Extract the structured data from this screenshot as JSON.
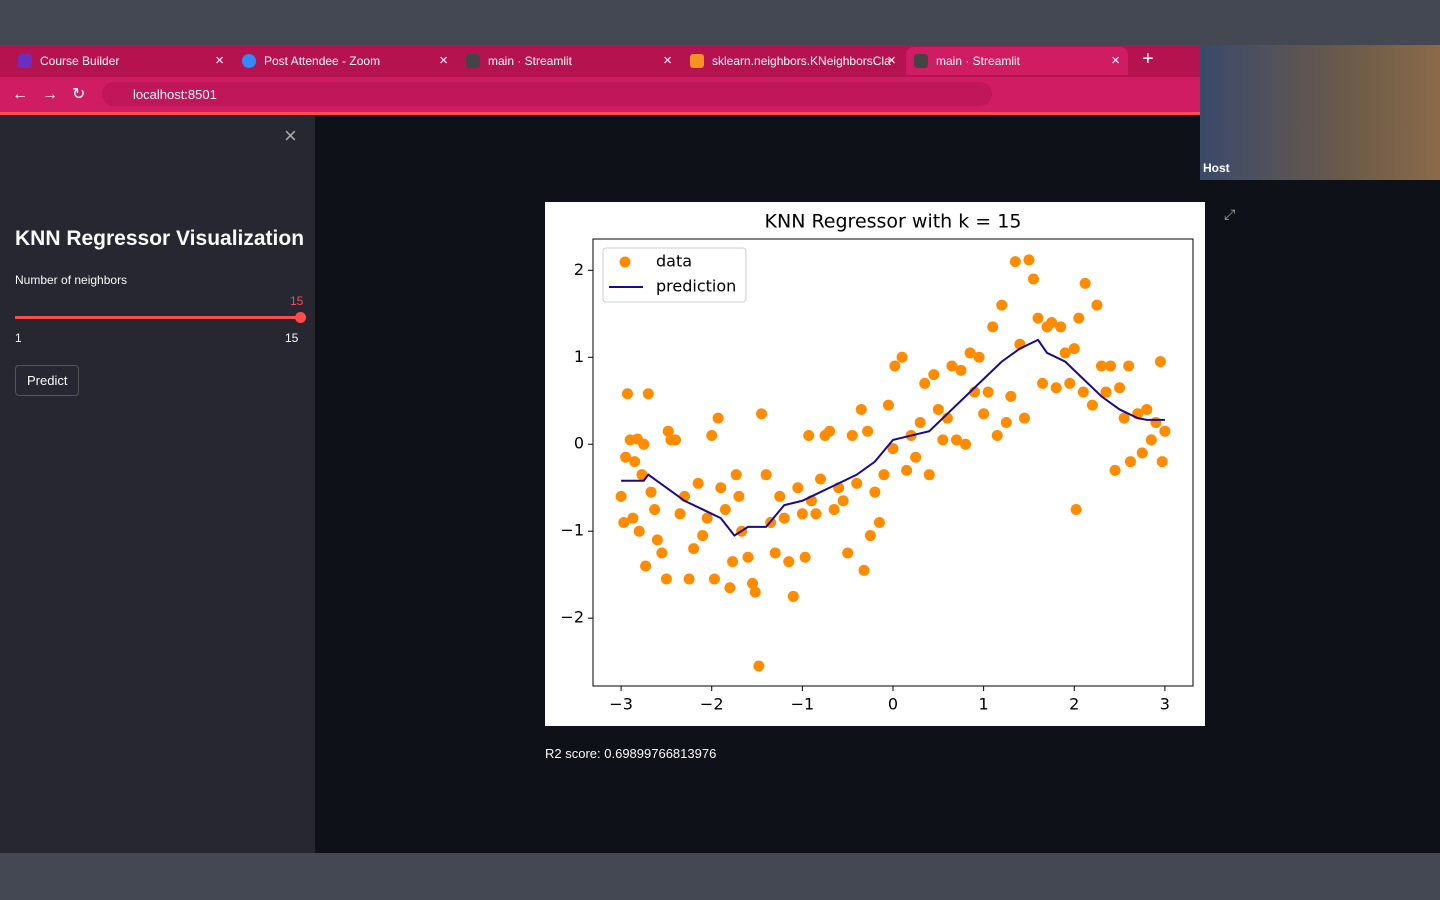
{
  "browser": {
    "tabs": [
      "Course Builder",
      "Post Attendee - Zoom",
      "main · Streamlit",
      "sklearn.neighbors.KNeighborsCla",
      "main · Streamlit"
    ],
    "url": "localhost:8501"
  },
  "video": {
    "label": "Host"
  },
  "sidebar": {
    "title": "KNN Regressor Visualization",
    "slider": {
      "label": "Number of neighbors",
      "value": 15,
      "min": 1,
      "max": 15
    },
    "button": "Predict"
  },
  "main": {
    "result": "R2 score: 0.69899766813976"
  },
  "chart_data": {
    "type": "scatter",
    "title": "KNN Regressor with k = 15",
    "legend": "upper left",
    "xlim": [
      -3.31,
      3.31
    ],
    "ylim": [
      -2.78,
      2.36
    ],
    "xticks": [
      {
        "value": -3,
        "label": "−3"
      },
      {
        "value": -2,
        "label": "−2"
      },
      {
        "value": -1,
        "label": "−1"
      },
      0,
      1,
      2,
      3
    ],
    "yticks": [
      {
        "value": -2,
        "label": "−2"
      },
      {
        "value": -1,
        "label": "−1"
      },
      0,
      1,
      2
    ],
    "series": [
      {
        "name": "data",
        "type": "scatter",
        "color": "#ff8c00",
        "x": [
          -3.0,
          -2.97,
          -2.95,
          -2.93,
          -2.9,
          -2.87,
          -2.85,
          -2.82,
          -2.8,
          -2.77,
          -2.75,
          -2.73,
          -2.7,
          -2.67,
          -2.63,
          -2.6,
          -2.55,
          -2.5,
          -2.48,
          -2.45,
          -2.4,
          -2.35,
          -2.3,
          -2.25,
          -2.2,
          -2.15,
          -2.1,
          -2.05,
          -2.0,
          -1.97,
          -1.93,
          -1.9,
          -1.85,
          -1.8,
          -1.77,
          -1.73,
          -1.7,
          -1.67,
          -1.6,
          -1.55,
          -1.52,
          -1.48,
          -1.45,
          -1.4,
          -1.35,
          -1.3,
          -1.25,
          -1.2,
          -1.15,
          -1.1,
          -1.05,
          -1.0,
          -0.97,
          -0.93,
          -0.9,
          -0.85,
          -0.8,
          -0.75,
          -0.7,
          -0.65,
          -0.6,
          -0.55,
          -0.5,
          -0.45,
          -0.4,
          -0.35,
          -0.32,
          -0.28,
          -0.25,
          -0.2,
          -0.15,
          -0.1,
          -0.05,
          0.0,
          0.02,
          0.1,
          0.15,
          0.2,
          0.25,
          0.3,
          0.35,
          0.4,
          0.45,
          0.5,
          0.55,
          0.6,
          0.65,
          0.7,
          0.75,
          0.8,
          0.85,
          0.9,
          0.95,
          1.0,
          1.05,
          1.1,
          1.15,
          1.2,
          1.25,
          1.3,
          1.35,
          1.4,
          1.45,
          1.5,
          1.55,
          1.6,
          1.65,
          1.7,
          1.75,
          1.8,
          1.85,
          1.9,
          1.95,
          2.0,
          2.02,
          2.05,
          2.1,
          2.12,
          2.2,
          2.25,
          2.3,
          2.35,
          2.4,
          2.45,
          2.5,
          2.55,
          2.6,
          2.62,
          2.7,
          2.75,
          2.8,
          2.85,
          2.9,
          2.95,
          2.97,
          3.0
        ],
        "values": [
          -0.6,
          -0.9,
          -0.15,
          0.58,
          0.05,
          -0.85,
          -0.2,
          0.06,
          -1.0,
          -0.35,
          0.0,
          -1.4,
          0.58,
          -0.55,
          -0.75,
          -1.1,
          -1.25,
          -1.55,
          0.15,
          0.05,
          0.05,
          -0.8,
          -0.6,
          -1.55,
          -1.2,
          -0.45,
          -1.05,
          -0.85,
          0.1,
          -1.55,
          0.3,
          -0.5,
          -0.75,
          -1.65,
          -1.35,
          -0.35,
          -0.6,
          -1.0,
          -1.3,
          -1.6,
          -1.7,
          -2.55,
          0.35,
          -0.35,
          -0.9,
          -1.25,
          -0.6,
          -0.85,
          -1.35,
          -1.75,
          -0.5,
          -0.8,
          -1.3,
          0.1,
          -0.65,
          -0.8,
          -0.4,
          0.1,
          0.15,
          -0.75,
          -0.5,
          -0.65,
          -1.25,
          0.1,
          -0.45,
          0.4,
          -1.45,
          0.15,
          -1.05,
          -0.55,
          -0.9,
          -0.35,
          0.45,
          -0.05,
          0.9,
          1.0,
          -0.3,
          0.1,
          -0.15,
          0.25,
          0.7,
          -0.35,
          0.8,
          0.4,
          0.05,
          0.3,
          0.9,
          0.05,
          0.85,
          0.0,
          1.05,
          0.6,
          1.0,
          0.35,
          0.6,
          1.35,
          0.1,
          1.6,
          0.25,
          0.55,
          2.1,
          1.15,
          0.3,
          2.12,
          1.9,
          1.45,
          0.7,
          1.35,
          1.4,
          0.65,
          1.35,
          1.05,
          0.7,
          1.1,
          -0.75,
          1.45,
          0.6,
          1.85,
          0.45,
          1.6,
          0.9,
          0.6,
          0.9,
          -0.3,
          0.65,
          0.3,
          0.9,
          -0.2,
          0.35,
          -0.1,
          0.4,
          0.05,
          0.25,
          0.95,
          -0.2,
          0.15
        ]
      },
      {
        "name": "prediction",
        "type": "line",
        "color": "#1a0a8c",
        "x": [
          -3.0,
          -2.75,
          -2.7,
          -2.5,
          -2.3,
          -2.1,
          -2.0,
          -1.9,
          -1.75,
          -1.6,
          -1.4,
          -1.2,
          -1.0,
          -0.8,
          -0.6,
          -0.4,
          -0.2,
          0.0,
          0.2,
          0.4,
          0.6,
          0.8,
          1.0,
          1.2,
          1.4,
          1.6,
          1.7,
          1.9,
          2.1,
          2.3,
          2.5,
          2.7,
          2.8,
          3.0
        ],
        "values": [
          -0.42,
          -0.42,
          -0.35,
          -0.5,
          -0.65,
          -0.75,
          -0.8,
          -0.85,
          -1.05,
          -0.95,
          -0.95,
          -0.7,
          -0.65,
          -0.55,
          -0.45,
          -0.35,
          -0.2,
          0.05,
          0.1,
          0.15,
          0.35,
          0.55,
          0.75,
          0.95,
          1.1,
          1.2,
          1.05,
          0.95,
          0.75,
          0.55,
          0.4,
          0.3,
          0.28,
          0.28
        ]
      }
    ]
  }
}
